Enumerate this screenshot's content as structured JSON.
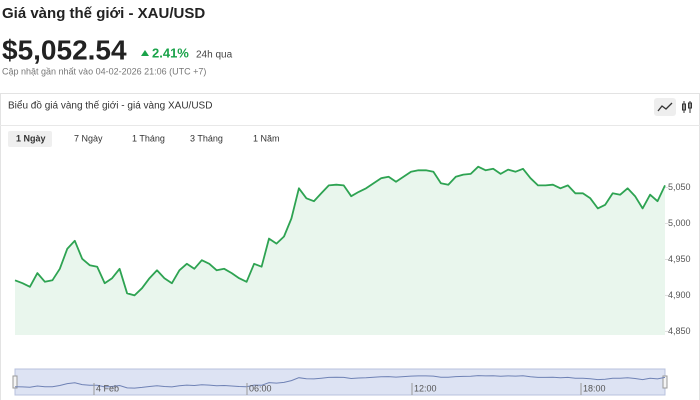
{
  "header": {
    "title": "Giá vàng thế giới - XAU/USD",
    "price": "$5,052.54",
    "change": "2.41%",
    "change_period": "24h qua",
    "updated": "Cập nhật gần nhất vào 04-02-2026 21:06 (UTC +7)"
  },
  "panel": {
    "title": "Biểu đồ giá vàng thế giới - giá vàng XAU/USD",
    "tabs": [
      "1 Ngày",
      "7 Ngày",
      "1 Tháng",
      "3 Tháng",
      "1 Năm"
    ],
    "active_tab": 0
  },
  "chart_data": {
    "type": "area",
    "color": "#2ea352",
    "fill": "#e9f6ed",
    "values": [
      4921,
      4917,
      4912,
      4931,
      4919,
      4921,
      4937,
      4965,
      4976,
      4951,
      4942,
      4940,
      4917,
      4924,
      4937,
      4903,
      4900,
      4910,
      4924,
      4935,
      4924,
      4917,
      4935,
      4944,
      4937,
      4949,
      4944,
      4935,
      4937,
      4931,
      4924,
      4919,
      4944,
      4940,
      4979,
      4972,
      4982,
      5007,
      5049,
      5035,
      5031,
      5042,
      5053,
      5054,
      5053,
      5038,
      5044,
      5049,
      5056,
      5063,
      5065,
      5058,
      5065,
      5072,
      5074,
      5074,
      5072,
      5056,
      5054,
      5065,
      5068,
      5069,
      5079,
      5074,
      5076,
      5069,
      5075,
      5072,
      5076,
      5063,
      5053,
      5053,
      5054,
      5049,
      5053,
      5042,
      5042,
      5035,
      5021,
      5026,
      5042,
      5040,
      5049,
      5038,
      5021,
      5040,
      5031,
      5053
    ],
    "ylim": [
      4845,
      5130
    ],
    "yticks": [
      {
        "value": 4850,
        "label": "4,850"
      },
      {
        "value": 4900,
        "label": "4,900"
      },
      {
        "value": 4950,
        "label": "4,950"
      },
      {
        "value": 5000,
        "label": "5,000"
      },
      {
        "value": 5050,
        "label": "5,050"
      }
    ],
    "navigator_labels": [
      "4 Feb",
      "06:00",
      "12:00",
      "18:00"
    ]
  }
}
